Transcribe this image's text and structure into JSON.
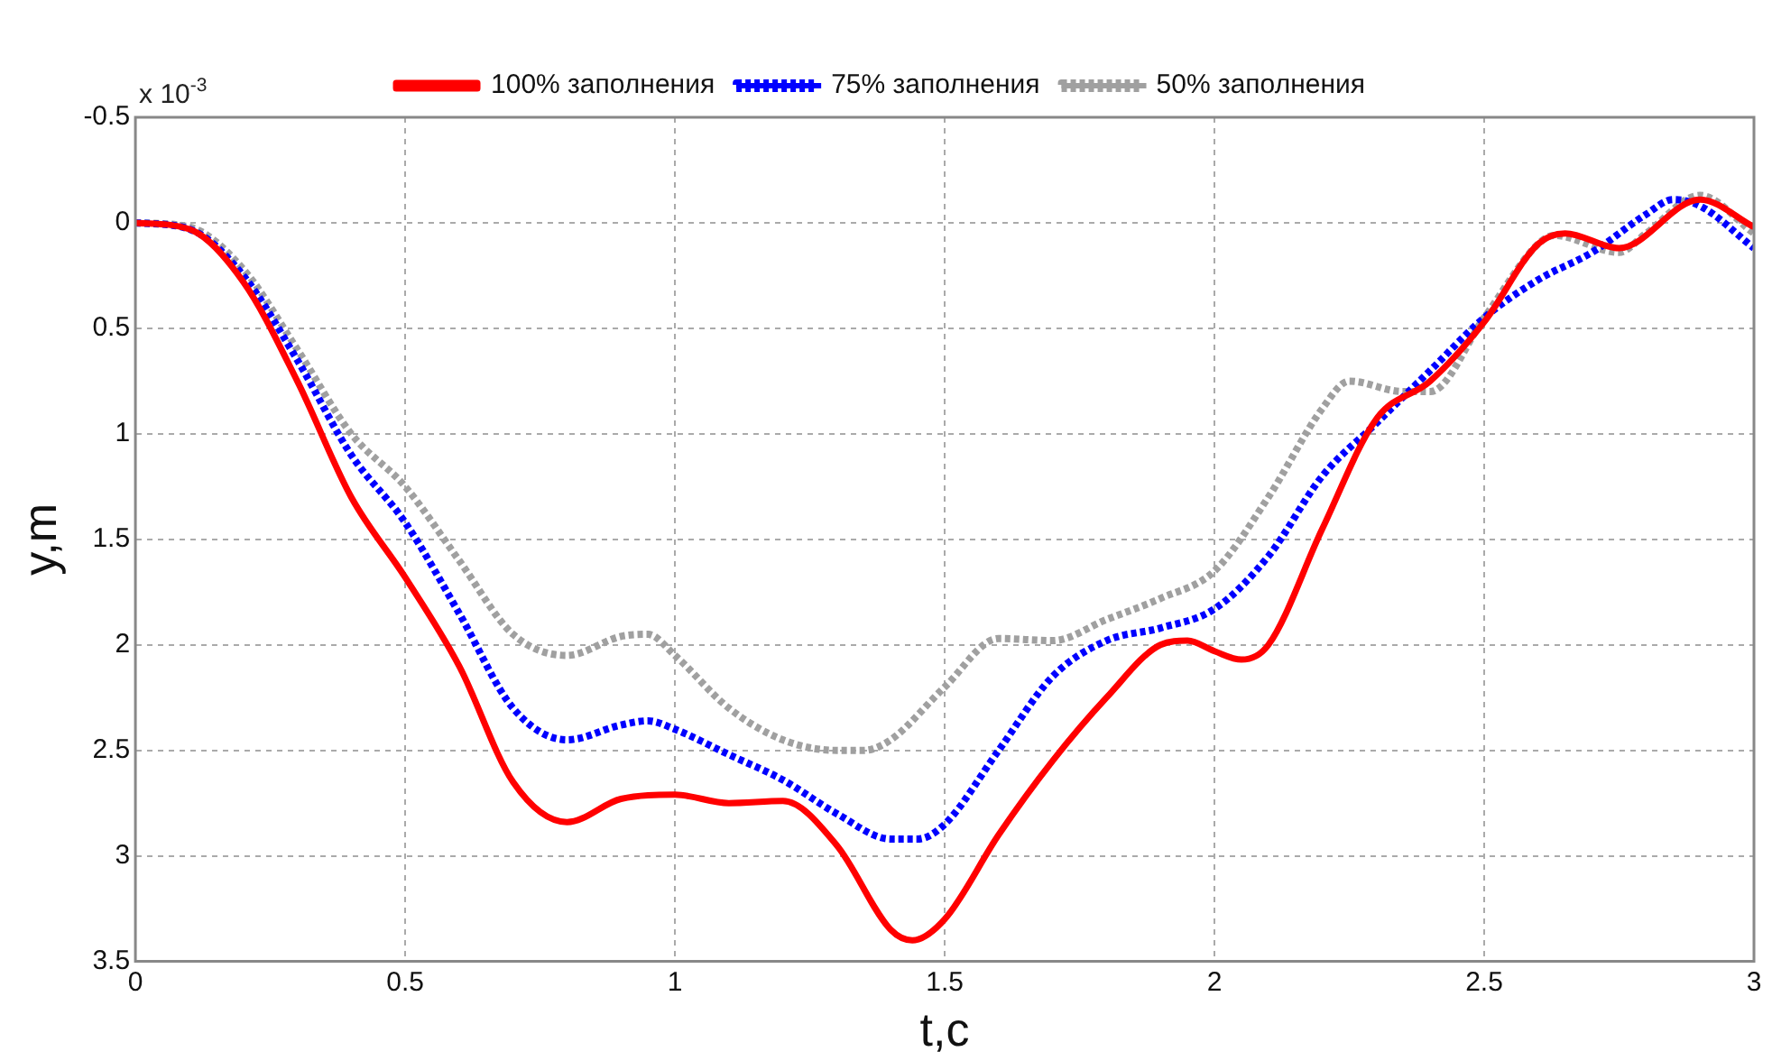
{
  "chart_data": {
    "type": "line",
    "xlabel": "t,c",
    "ylabel": "y,m",
    "annotations": [
      "x 10$^{-3}$"
    ],
    "xlim": [
      0,
      3
    ],
    "xticks": [
      0,
      0.5,
      1,
      1.5,
      2,
      2.5,
      3
    ],
    "ylim": [
      3.5,
      -0.5
    ],
    "yticks": [
      -0.5,
      0,
      0.5,
      1,
      1.5,
      2,
      2.5,
      3,
      3.5
    ],
    "grid": true,
    "legend": "top",
    "marker": "none",
    "series": [
      {
        "name": "100% заполнения",
        "color": "#ff0000",
        "line_style": "solid",
        "x": [
          0,
          0.1,
          0.2,
          0.3,
          0.4,
          0.5,
          0.6,
          0.7,
          0.8,
          0.9,
          1.0,
          1.1,
          1.2,
          1.3,
          1.4,
          1.44,
          1.5,
          1.6,
          1.7,
          1.8,
          1.9,
          1.95,
          2.0,
          2.05,
          2.1,
          2.2,
          2.3,
          2.4,
          2.5,
          2.6,
          2.65,
          2.75,
          2.9,
          3.0
        ],
        "values": [
          0,
          0.03,
          0.28,
          0.75,
          1.3,
          1.68,
          2.1,
          2.65,
          2.84,
          2.73,
          2.71,
          2.75,
          2.74,
          2.95,
          3.35,
          3.4,
          3.3,
          2.9,
          2.55,
          2.25,
          2.0,
          1.98,
          2.03,
          2.07,
          2.0,
          1.45,
          0.93,
          0.75,
          0.47,
          0.1,
          0.05,
          0.12,
          -0.11,
          0.02
        ]
      },
      {
        "name": "75% заполнения",
        "color": "#0000ff",
        "line_style": "dotted",
        "x": [
          0,
          0.1,
          0.2,
          0.3,
          0.4,
          0.5,
          0.6,
          0.7,
          0.8,
          0.9,
          0.95,
          1.0,
          1.1,
          1.2,
          1.3,
          1.4,
          1.45,
          1.5,
          1.6,
          1.7,
          1.8,
          1.9,
          2.0,
          2.1,
          2.2,
          2.3,
          2.4,
          2.5,
          2.6,
          2.7,
          2.8,
          2.85,
          2.9,
          3.0
        ],
        "values": [
          0,
          0.03,
          0.25,
          0.65,
          1.1,
          1.42,
          1.85,
          2.3,
          2.45,
          2.38,
          2.36,
          2.4,
          2.52,
          2.64,
          2.8,
          2.92,
          2.92,
          2.85,
          2.5,
          2.15,
          1.98,
          1.92,
          1.83,
          1.58,
          1.2,
          0.95,
          0.7,
          0.45,
          0.27,
          0.14,
          -0.04,
          -0.11,
          -0.08,
          0.12
        ]
      },
      {
        "name": "50% заполнения",
        "color": "#a0a0a0",
        "line_style": "dotted",
        "x": [
          0,
          0.1,
          0.2,
          0.3,
          0.4,
          0.5,
          0.6,
          0.7,
          0.8,
          0.9,
          0.95,
          1.0,
          1.1,
          1.2,
          1.3,
          1.35,
          1.4,
          1.5,
          1.6,
          1.7,
          1.8,
          1.9,
          2.0,
          2.1,
          2.2,
          2.25,
          2.35,
          2.4,
          2.5,
          2.6,
          2.63,
          2.75,
          2.8,
          2.9,
          3.0
        ],
        "values": [
          0,
          0.02,
          0.22,
          0.6,
          1.0,
          1.25,
          1.6,
          1.95,
          2.05,
          1.96,
          1.95,
          2.05,
          2.3,
          2.45,
          2.5,
          2.5,
          2.45,
          2.2,
          1.97,
          1.98,
          1.88,
          1.78,
          1.65,
          1.3,
          0.88,
          0.75,
          0.8,
          0.8,
          0.45,
          0.1,
          0.06,
          0.14,
          0.05,
          -0.13,
          0.05
        ]
      }
    ]
  }
}
